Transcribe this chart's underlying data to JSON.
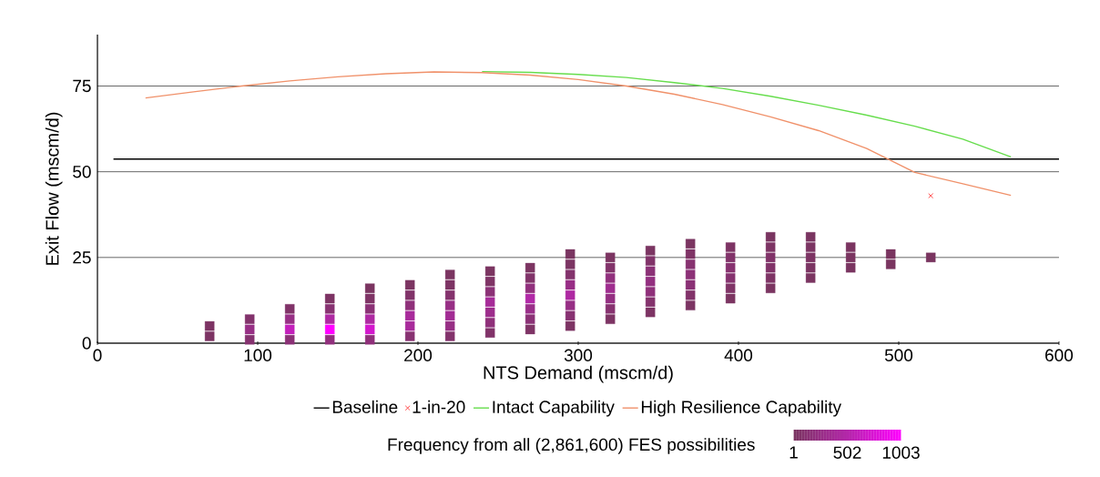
{
  "chart_data": {
    "type": "line",
    "xlabel": "NTS Demand (mscm/d)",
    "ylabel": "Exit Flow (mscm/d)",
    "xlim": [
      0,
      600
    ],
    "xticks": [
      0,
      100,
      200,
      300,
      400,
      500,
      600
    ],
    "ylim": [
      0,
      90
    ],
    "yticks": [
      0,
      25,
      50,
      75
    ],
    "grid": "y",
    "legend": "bottom",
    "clabel": "Frequency from all (2,861,600) FES possibilities",
    "clim": [
      1,
      1003
    ],
    "cticks": [
      1,
      502,
      1003
    ],
    "series": [
      {
        "type": "scatter",
        "marker": "square",
        "x": [
          70,
          70,
          95,
          95,
          95,
          120,
          120,
          120,
          120,
          145,
          145,
          145,
          145,
          145,
          170,
          170,
          170,
          170,
          170,
          170,
          195,
          195,
          195,
          195,
          195,
          195,
          220,
          220,
          220,
          220,
          220,
          220,
          220,
          245,
          245,
          245,
          245,
          245,
          245,
          245,
          270,
          270,
          270,
          270,
          270,
          270,
          270,
          295,
          295,
          295,
          295,
          295,
          295,
          295,
          295,
          320,
          320,
          320,
          320,
          320,
          320,
          320,
          345,
          345,
          345,
          345,
          345,
          345,
          345,
          370,
          370,
          370,
          370,
          370,
          370,
          370,
          395,
          395,
          395,
          395,
          395,
          395,
          420,
          420,
          420,
          420,
          420,
          420,
          445,
          445,
          445,
          445,
          445,
          470,
          470,
          470,
          495,
          495,
          520
        ],
        "values": [
          2,
          5,
          1,
          4,
          7,
          1,
          4,
          7,
          10,
          1,
          4,
          7,
          10,
          13,
          1,
          4,
          7,
          10,
          13,
          16,
          2,
          5,
          8,
          11,
          14,
          17,
          2,
          5,
          8,
          11,
          14,
          17,
          20,
          3,
          6,
          9,
          12,
          15,
          18,
          21,
          4,
          7,
          10,
          13,
          16,
          19,
          22,
          5,
          8,
          11,
          14,
          17,
          20,
          23,
          26,
          7,
          10,
          13,
          16,
          19,
          22,
          25,
          9,
          12,
          15,
          18,
          21,
          24,
          27,
          11,
          14,
          17,
          20,
          23,
          26,
          29,
          13,
          16,
          19,
          22,
          25,
          28,
          16,
          19,
          22,
          25,
          28,
          31,
          19,
          22,
          25,
          28,
          31,
          22,
          25,
          28,
          23,
          26,
          25
        ],
        "cvalues": [
          30,
          30,
          100,
          250,
          80,
          150,
          600,
          250,
          60,
          200,
          1003,
          450,
          120,
          30,
          180,
          700,
          450,
          150,
          40,
          10,
          120,
          400,
          400,
          180,
          60,
          15,
          80,
          250,
          350,
          250,
          90,
          25,
          8,
          60,
          180,
          300,
          380,
          150,
          40,
          10,
          40,
          150,
          280,
          480,
          200,
          60,
          15,
          30,
          120,
          250,
          450,
          260,
          80,
          20,
          5,
          30,
          110,
          230,
          320,
          200,
          70,
          15,
          25,
          90,
          180,
          220,
          150,
          60,
          12,
          20,
          70,
          140,
          160,
          110,
          40,
          8,
          15,
          50,
          100,
          110,
          70,
          25,
          10,
          35,
          60,
          60,
          30,
          5,
          8,
          20,
          30,
          20,
          5,
          5,
          10,
          8,
          3,
          4,
          2
        ],
        "colors": [
          "#7d3464",
          "#7d3464",
          "#85326f",
          "#972f85",
          "#83336c",
          "#8b3176",
          "#c320bb",
          "#972f85",
          "#813369",
          "#91307d",
          "#ff00ff",
          "#ae29a2",
          "#883272",
          "#7d3464",
          "#8f307a",
          "#d218cc",
          "#ae29a2",
          "#8b3176",
          "#7f3466",
          "#7b3561",
          "#883272",
          "#a82b9b",
          "#a82b9b",
          "#8f307a",
          "#813369",
          "#7c3562",
          "#83336c",
          "#972f85",
          "#a22c94",
          "#972f85",
          "#84336d",
          "#7d3464",
          "#7b3561",
          "#813369",
          "#8f307a",
          "#9d2d8c",
          "#a62b98",
          "#8b3176",
          "#7f3466",
          "#7b3561",
          "#7f3466",
          "#8b3176",
          "#9a2e89",
          "#b129a7",
          "#91307d",
          "#813369",
          "#7c3562",
          "#7d3464",
          "#883272",
          "#972f85",
          "#ae29a2",
          "#982e86",
          "#83336c",
          "#7c3463",
          "#7a3561",
          "#7d3464",
          "#873270",
          "#952f82",
          "#9f2d8f",
          "#91307d",
          "#82336a",
          "#7c3562",
          "#7d3464",
          "#84336d",
          "#8f307a",
          "#932f80",
          "#8b3176",
          "#813369",
          "#7b3562",
          "#7c3463",
          "#82336a",
          "#8a3174",
          "#8c3177",
          "#873270",
          "#7f3466",
          "#7b3561",
          "#7c3562",
          "#803467",
          "#85326f",
          "#873270",
          "#82336a",
          "#7d3464",
          "#7b3561",
          "#7e3465",
          "#813369",
          "#813369",
          "#7d3464",
          "#7a3561",
          "#7b3561",
          "#7c3463",
          "#7d3464",
          "#7c3463",
          "#7a3561",
          "#7a3561",
          "#7b3561",
          "#7b3561",
          "#7a3560",
          "#7a3560",
          "#7a3560"
        ]
      },
      {
        "name": "Baseline",
        "color": "#000000",
        "x": [
          10,
          600
        ],
        "values": [
          53.7,
          53.7
        ]
      },
      {
        "type": "scatter",
        "marker": "cross",
        "name": "1-in-20",
        "color": "#ff4d4d",
        "x": [
          520
        ],
        "values": [
          43
        ]
      },
      {
        "name": "Intact Capability",
        "color": "#66dd4c",
        "x": [
          240,
          270,
          300,
          330,
          360,
          390,
          420,
          450,
          480,
          510,
          540,
          570
        ],
        "values": [
          79.2,
          79,
          78.4,
          77.5,
          76,
          74.3,
          72,
          69.4,
          66.5,
          63.3,
          59.5,
          54.3
        ]
      },
      {
        "name": "High Resilience Capability",
        "color": "#f0916a",
        "x": [
          30,
          60,
          90,
          120,
          150,
          180,
          210,
          240,
          270,
          300,
          330,
          360,
          390,
          420,
          450,
          480,
          510,
          540,
          570
        ],
        "values": [
          71.5,
          73.3,
          75,
          76.5,
          77.7,
          78.6,
          79.1,
          78.9,
          78.2,
          76.9,
          75,
          72.6,
          69.6,
          66,
          62,
          56.8,
          49.8,
          46.5,
          43.1
        ]
      }
    ]
  }
}
